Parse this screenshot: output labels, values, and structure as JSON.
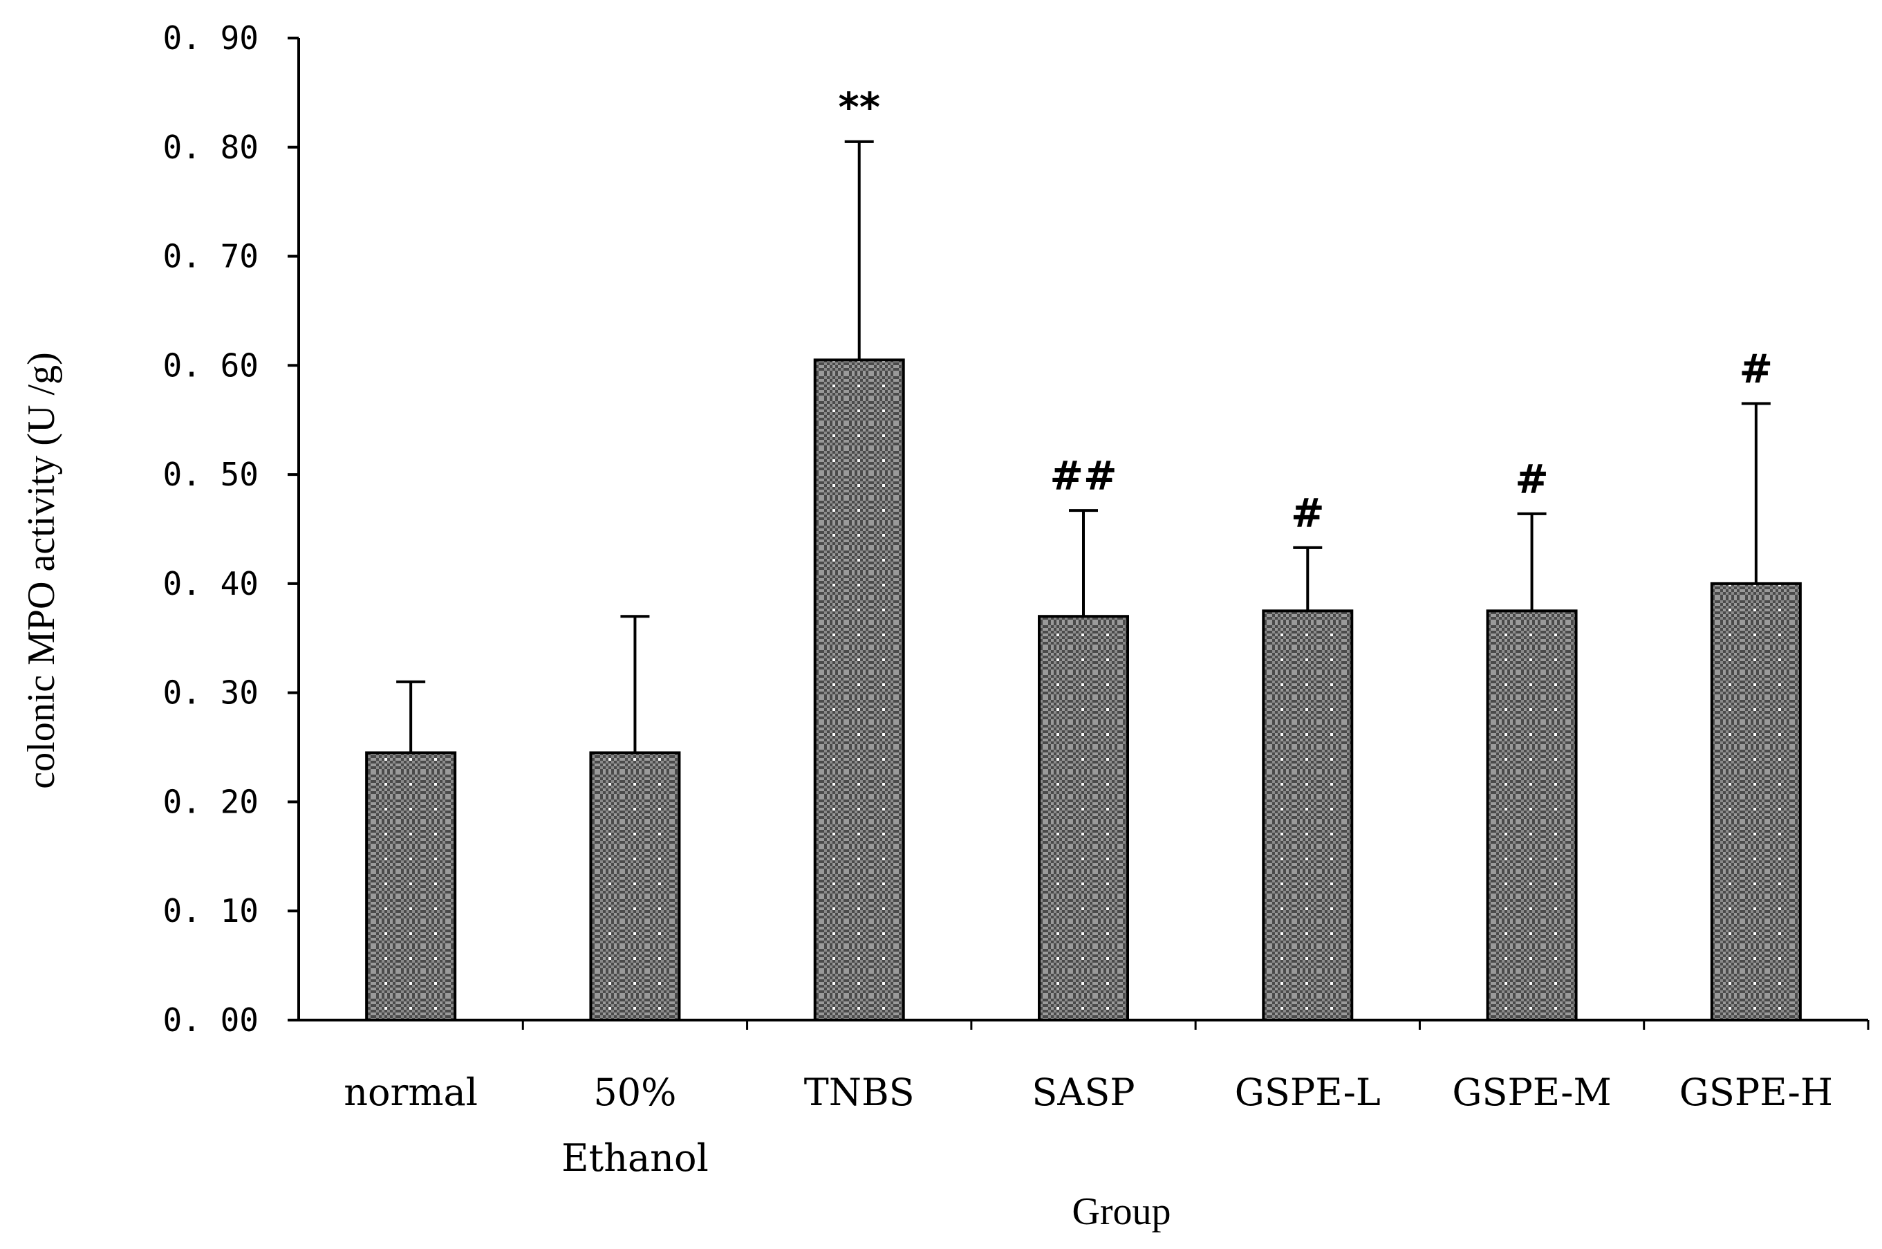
{
  "chart_data": {
    "type": "bar",
    "title": "",
    "xlabel": "Group",
    "ylabel": "colonic MPO activity  (U /g)",
    "ylim": [
      0,
      0.9
    ],
    "yticks": [
      "0.00",
      "0.10",
      "0.20",
      "0.30",
      "0.40",
      "0.50",
      "0.60",
      "0.70",
      "0.80",
      "0.90"
    ],
    "categories": [
      {
        "line1": "normal",
        "line2": ""
      },
      {
        "line1": "50%",
        "line2": "Ethanol"
      },
      {
        "line1": "TNBS",
        "line2": ""
      },
      {
        "line1": "SASP",
        "line2": ""
      },
      {
        "line1": "GSPE-L",
        "line2": ""
      },
      {
        "line1": "GSPE-M",
        "line2": ""
      },
      {
        "line1": "GSPE-H",
        "line2": ""
      }
    ],
    "values": [
      0.245,
      0.245,
      0.605,
      0.37,
      0.375,
      0.375,
      0.4
    ],
    "errors": [
      0.065,
      0.125,
      0.2,
      0.097,
      0.058,
      0.089,
      0.165
    ],
    "annotations": [
      "",
      "",
      "**",
      "##",
      "#",
      "#",
      "#"
    ],
    "grid": false,
    "bar_fill": "#5a5a5a",
    "bar_dot": "#ffffff",
    "axis_color": "#000000"
  }
}
